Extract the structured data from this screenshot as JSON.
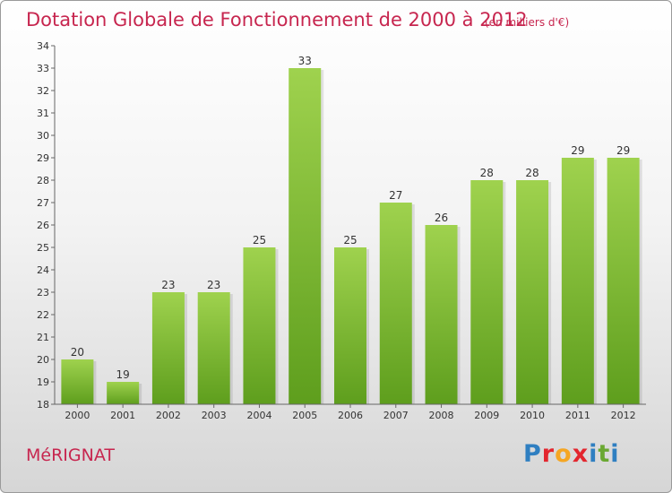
{
  "chart_data": {
    "type": "bar",
    "title": "Dotation Globale de Fonctionnement de 2000 à 2012",
    "unit_note": "(en milliers d'€)",
    "categories": [
      "2000",
      "2001",
      "2002",
      "2003",
      "2004",
      "2005",
      "2006",
      "2007",
      "2008",
      "2009",
      "2010",
      "2011",
      "2012"
    ],
    "values": [
      20,
      19,
      23,
      23,
      25,
      33,
      25,
      27,
      26,
      28,
      28,
      29,
      29
    ],
    "ylim": [
      18,
      34
    ],
    "yticks": [
      18,
      19,
      20,
      21,
      22,
      23,
      24,
      25,
      26,
      27,
      28,
      29,
      30,
      31,
      32,
      33,
      34
    ],
    "grid": false,
    "bar_color": "#7cbf3a"
  },
  "footer": {
    "commune": "MéRIGNAT",
    "logo_letters": [
      {
        "ch": "P",
        "color": "#2f7fc1"
      },
      {
        "ch": "r",
        "color": "#e3262e"
      },
      {
        "ch": "o",
        "color": "#f5a623"
      },
      {
        "ch": "x",
        "color": "#e3262e"
      },
      {
        "ch": "i",
        "color": "#2f7fc1"
      },
      {
        "ch": "t",
        "color": "#6aa832"
      },
      {
        "ch": "i",
        "color": "#2f7fc1"
      }
    ]
  }
}
